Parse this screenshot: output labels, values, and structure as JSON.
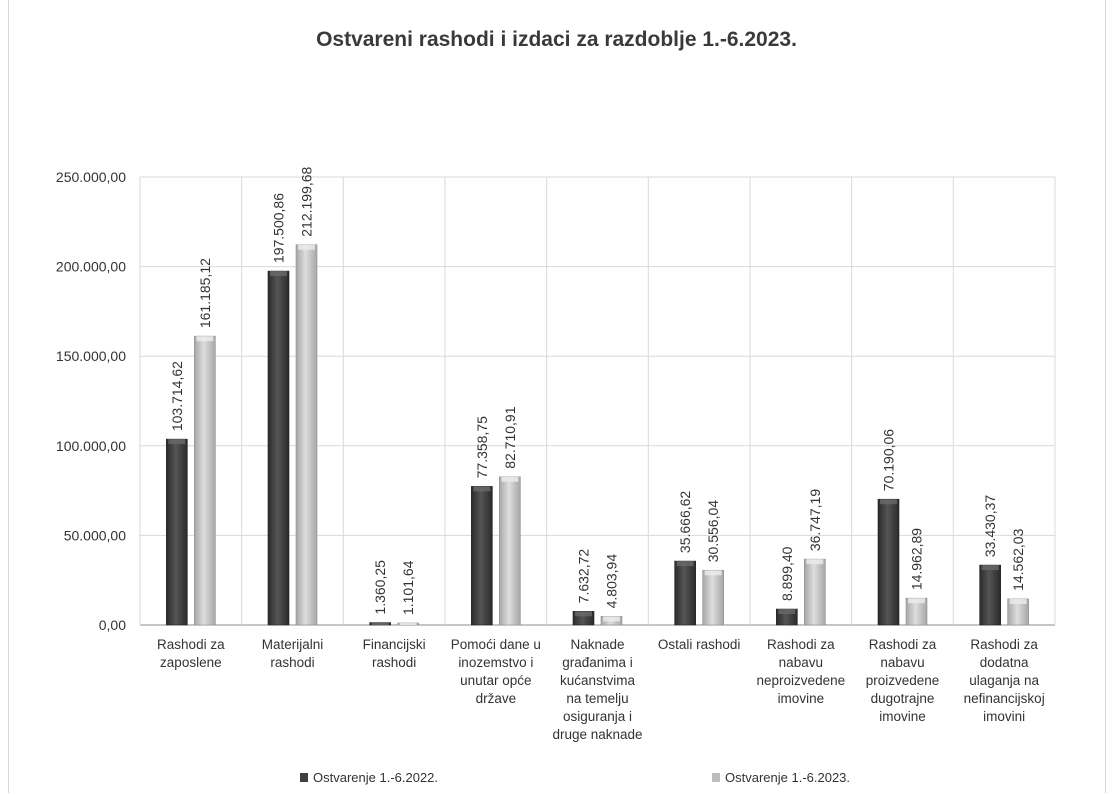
{
  "chart_data": {
    "type": "bar",
    "title": "Ostvareni rashodi i izdaci za razdoblje 1.-6.2023.",
    "categories": [
      [
        "Rashodi za",
        "zaposlene"
      ],
      [
        "Materijalni",
        "rashodi"
      ],
      [
        "Financijski",
        "rashodi"
      ],
      [
        "Pomoći dane u",
        "inozemstvo i",
        "unutar opće",
        "države"
      ],
      [
        "Naknade",
        "građanima i",
        "kućanstvima",
        "na temelju",
        "osiguranja i",
        "druge naknade"
      ],
      [
        "Ostali rashodi"
      ],
      [
        "Rashodi za",
        "nabavu",
        "neproizvedene",
        "imovine"
      ],
      [
        "Rashodi za",
        "nabavu",
        "proizvedene",
        "dugotrajne",
        "imovine"
      ],
      [
        "Rashodi za",
        "dodatna",
        "ulaganja na",
        "nefinancijskoj",
        "imovini"
      ]
    ],
    "series": [
      {
        "name": "Ostvarenje 1.-6.2022.",
        "color": "#3f3f3f",
        "values": [
          103714.62,
          197500.86,
          1360.25,
          77358.75,
          7632.72,
          35666.62,
          8899.4,
          70190.06,
          33430.37
        ],
        "labels": [
          "103.714,62",
          "197.500,86",
          "1.360,25",
          "77.358,75",
          "7.632,72",
          "35.666,62",
          "8.899,40",
          "70.190,06",
          "33.430,37"
        ]
      },
      {
        "name": "Ostvarenje 1.-6.2023.",
        "color": "#bdbdbd",
        "values": [
          161185.12,
          212199.68,
          1101.64,
          82710.91,
          4803.94,
          30556.04,
          36747.19,
          14962.89,
          14562.03
        ],
        "labels": [
          "161.185,12",
          "212.199,68",
          "1.101,64",
          "82.710,91",
          "4.803,94",
          "30.556,04",
          "36.747,19",
          "14.962,89",
          "14.562,03"
        ]
      }
    ],
    "yticks": [
      0,
      50000,
      100000,
      150000,
      200000,
      250000
    ],
    "yticklabels": [
      "0,00",
      "50.000,00",
      "100.000,00",
      "150.000,00",
      "200.000,00",
      "250.000,00"
    ],
    "ylim": [
      0,
      250000
    ],
    "grid": true,
    "legend_position": "bottom"
  }
}
